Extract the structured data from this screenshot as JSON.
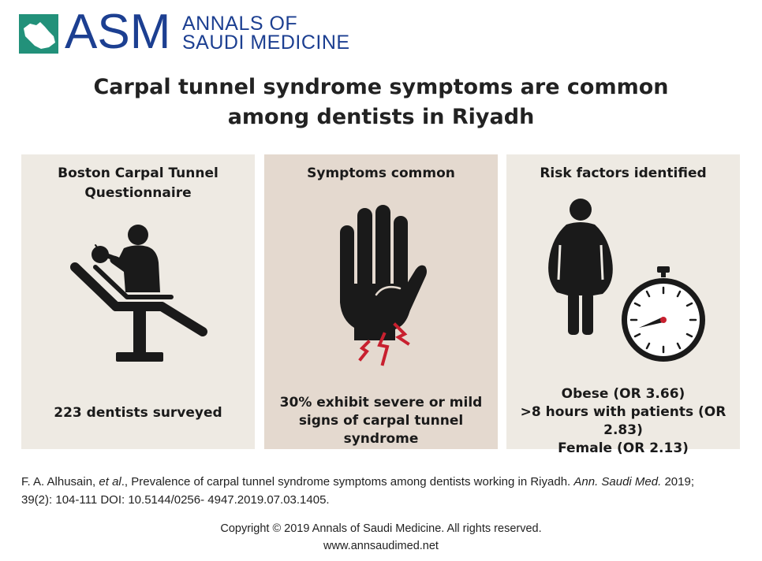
{
  "brand": {
    "acronym": "ASM",
    "name_line1": "ANNALS OF",
    "name_line2": "SAUDI MEDICINE",
    "color": "#1c3f91",
    "accent": "#1e9c54"
  },
  "title": {
    "line1": "Carpal tunnel syndrome symptoms are common",
    "line2": "among dentists in Riyadh"
  },
  "panels": [
    {
      "title_line1": "Boston Carpal Tunnel",
      "title_line2": "Questionnaire",
      "icon": "dentist-chair-icon",
      "footer": "223 dentists surveyed"
    },
    {
      "title_line1": "Symptoms common",
      "icon": "hand-pain-icon",
      "footer_line1": "30% exhibit severe or mild",
      "footer_line2": "signs of carpal tunnel syndrome",
      "accent": "#c8202f"
    },
    {
      "title_line1": "Risk factors identified",
      "icon": "obese-person-and-stopwatch-icon",
      "footer_line1": "Obese (OR 3.66)",
      "footer_line2": ">8 hours with patients (OR 2.83)",
      "footer_line3": "Female (OR 2.13)"
    }
  ],
  "citation": {
    "authors": "F. A. Alhusain, ",
    "etal": "et al",
    "text": "., Prevalence of carpal tunnel syndrome symptoms among dentists working in Riyadh. ",
    "journal": "Ann. Saudi Med.",
    "year": " 2019;",
    "line2": "39(2): 104-111 DOI: 10.5144/0256- 4947.2019.07.03.1405."
  },
  "footer": {
    "copyright": "Copyright © 2019 Annals of Saudi Medicine.  All rights reserved.",
    "website": "www.annsaudimed.net"
  }
}
